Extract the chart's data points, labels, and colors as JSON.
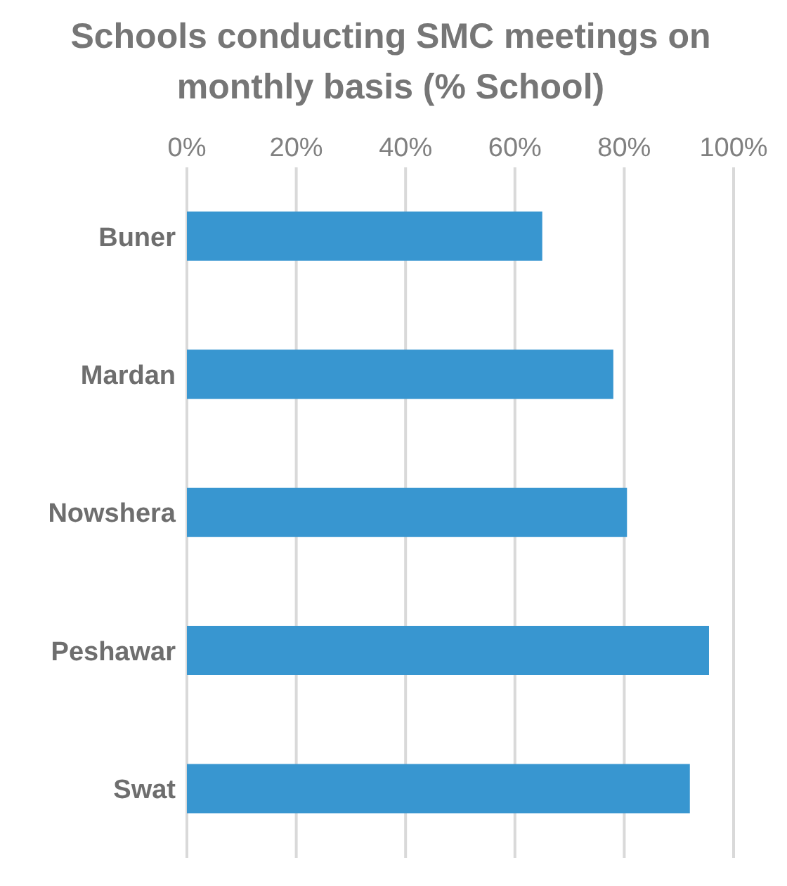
{
  "chart_data": {
    "type": "bar",
    "orientation": "horizontal",
    "title": "Schools conducting SMC meetings on monthly basis (% School)",
    "categories": [
      "Buner",
      "Mardan",
      "Nowshera",
      "Peshawar",
      "Swat"
    ],
    "values": [
      65,
      78,
      80.5,
      95.5,
      92
    ],
    "color": "#3896d0",
    "xlim": [
      0,
      100
    ],
    "xticks": [
      {
        "value": 0,
        "label": "0%"
      },
      {
        "value": 20,
        "label": "20%"
      },
      {
        "value": 40,
        "label": "40%"
      },
      {
        "value": 60,
        "label": "60%"
      },
      {
        "value": 80,
        "label": "80%"
      },
      {
        "value": 100,
        "label": "100%"
      }
    ],
    "grid": "x"
  }
}
